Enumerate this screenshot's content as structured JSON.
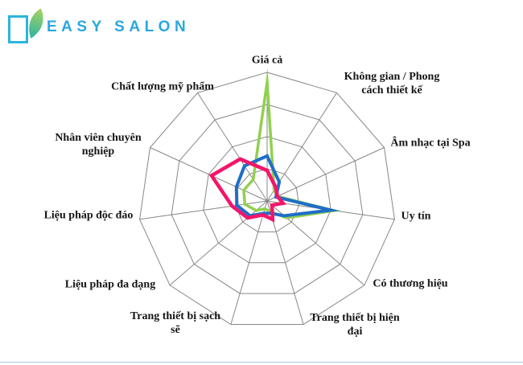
{
  "logo": {
    "text": "EASY SALON",
    "text_color": "#2AA7DF",
    "square_color": "#2CB5DB",
    "leaf_color_top": "#A5D45F",
    "leaf_color_bottom": "#2FB3A3"
  },
  "chart_data": {
    "type": "radar",
    "title": "",
    "categories": [
      "Giá cả",
      "Không gian / Phong\ncách thiết kế",
      "Âm nhạc tại Spa",
      "Uy tín",
      "Có thương hiệu",
      "Trang thiết bị hiện\nđại",
      "Trang thiết bị sạch\nsẽ",
      "Liệu pháp đa dạng",
      "Liệu pháp độc đáo",
      "Nhân viên chuyên\nnghiệp",
      "Chất lượng mỹ phẩm"
    ],
    "series": [
      {
        "name": "green-series",
        "color": "#92D050",
        "values": [
          3.7,
          0.4,
          0.35,
          2.1,
          0.8,
          0.35,
          0.25,
          0.45,
          0.7,
          0.8,
          0.8
        ]
      },
      {
        "name": "blue-series",
        "color": "#1E6EC8",
        "values": [
          1.4,
          0.7,
          0.3,
          2.0,
          0.7,
          0.4,
          0.4,
          0.7,
          0.95,
          1.05,
          1.3
        ]
      },
      {
        "name": "pink-series",
        "color": "#F4156B",
        "values": [
          0.95,
          0.5,
          0.35,
          0.5,
          0.2,
          0.6,
          0.45,
          0.8,
          1.1,
          1.9,
          1.55
        ]
      }
    ],
    "axis_range": [
      0,
      4
    ],
    "rings": 4,
    "grid": true,
    "grid_color": "#878787",
    "legend": "none",
    "start_angle_deg": 90
  },
  "bottom_rule_color": "#8FB4D9"
}
